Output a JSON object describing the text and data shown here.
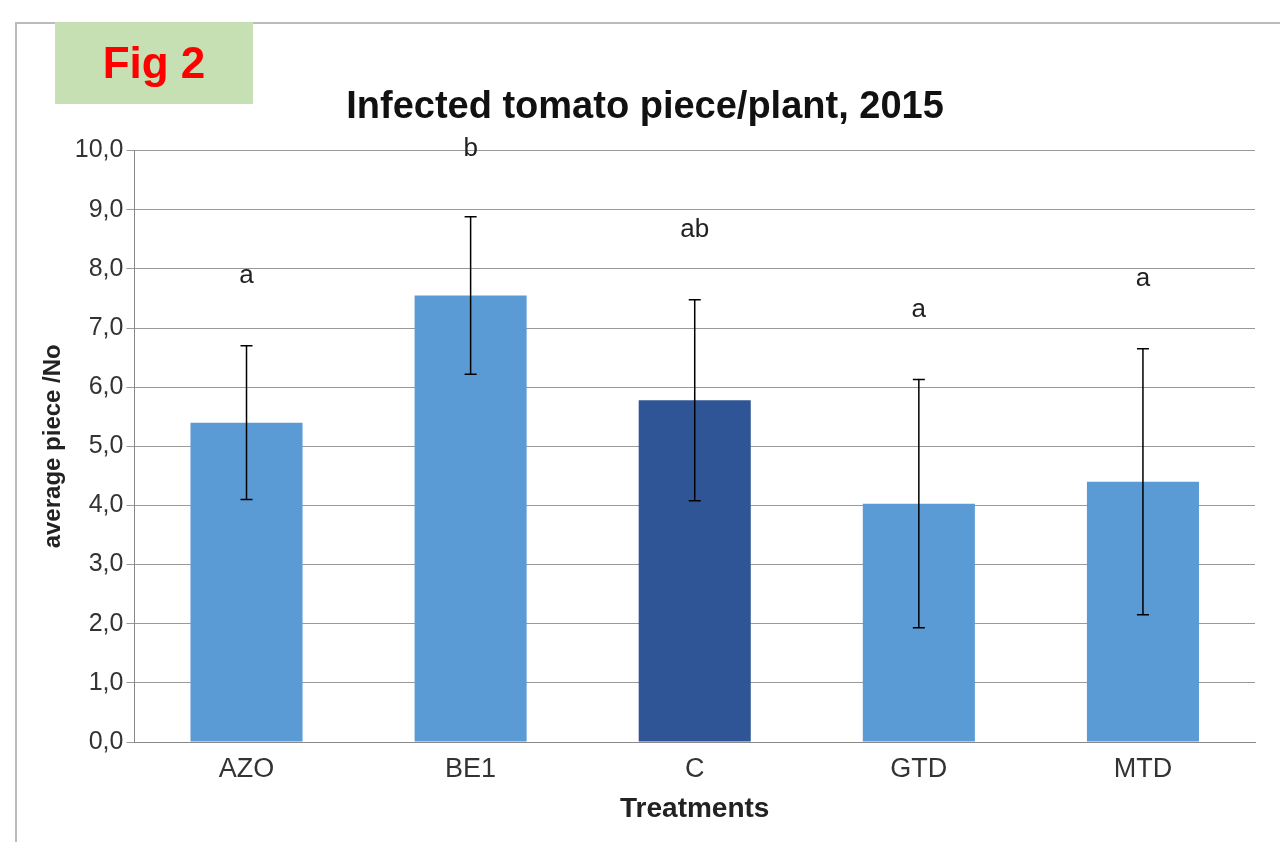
{
  "chart_data": {
    "type": "bar",
    "title": "Infected tomato piece/plant, 2015",
    "xlabel": "Treatments",
    "ylabel": "average piece /No",
    "categories": [
      "AZO",
      "BE1",
      "C",
      "GTD",
      "MTD"
    ],
    "values": [
      5.4,
      7.55,
      5.78,
      4.03,
      4.4
    ],
    "colors": [
      "#5b9bd5",
      "#5b9bd5",
      "#2f5597",
      "#5b9bd5",
      "#5b9bd5"
    ],
    "errors": [
      1.3,
      1.33,
      1.7,
      2.1,
      2.25
    ],
    "ylim": [
      0,
      10
    ],
    "yticks": [
      {
        "value": 0,
        "label": "0,0"
      },
      {
        "value": 1,
        "label": "1,0"
      },
      {
        "value": 2,
        "label": "2,0"
      },
      {
        "value": 3,
        "label": "3,0"
      },
      {
        "value": 4,
        "label": "4,0"
      },
      {
        "value": 5,
        "label": "5,0"
      },
      {
        "value": 6,
        "label": "6,0"
      },
      {
        "value": 7,
        "label": "7,0"
      },
      {
        "value": 8,
        "label": "8,0"
      },
      {
        "value": 9,
        "label": "9,0"
      },
      {
        "value": 10,
        "label": "10,0"
      }
    ],
    "grid": "y",
    "legend": false,
    "annotations": [
      "Fig 2",
      "a",
      "b",
      "ab",
      "a",
      "a"
    ]
  }
}
